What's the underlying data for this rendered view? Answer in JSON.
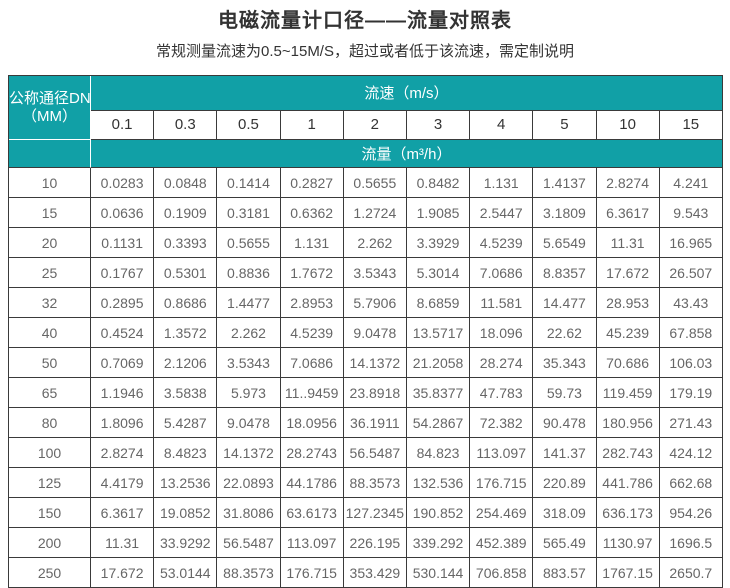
{
  "page": {
    "title": "电磁流量计口径——流量对照表",
    "subtitle": "常规测量流速为0.5~15M/S，超过或者低于该流速，需定制说明"
  },
  "colors": {
    "teal": "#11A0A6",
    "border": "#3a3a3a",
    "data_text": "#666666",
    "header_text": "#333333"
  },
  "table": {
    "corner_line1": "公称通径DN",
    "corner_line2": "（MM）",
    "velocity_header": "流速（m/s）",
    "velocity_values": [
      "0.1",
      "0.3",
      "0.5",
      "1",
      "2",
      "3",
      "4",
      "5",
      "10",
      "15"
    ],
    "flow_header": "流量（m³/h）",
    "rows": [
      {
        "dn": "10",
        "values": [
          "0.0283",
          "0.0848",
          "0.1414",
          "0.2827",
          "0.5655",
          "0.8482",
          "1.131",
          "1.4137",
          "2.8274",
          "4.241"
        ]
      },
      {
        "dn": "15",
        "values": [
          "0.0636",
          "0.1909",
          "0.3181",
          "0.6362",
          "1.2724",
          "1.9085",
          "2.5447",
          "3.1809",
          "6.3617",
          "9.543"
        ]
      },
      {
        "dn": "20",
        "values": [
          "0.1131",
          "0.3393",
          "0.5655",
          "1.131",
          "2.262",
          "3.3929",
          "4.5239",
          "5.6549",
          "11.31",
          "16.965"
        ]
      },
      {
        "dn": "25",
        "values": [
          "0.1767",
          "0.5301",
          "0.8836",
          "1.7672",
          "3.5343",
          "5.3014",
          "7.0686",
          "8.8357",
          "17.672",
          "26.507"
        ]
      },
      {
        "dn": "32",
        "values": [
          "0.2895",
          "0.8686",
          "1.4477",
          "2.8953",
          "5.7906",
          "8.6859",
          "11.581",
          "14.477",
          "28.953",
          "43.43"
        ]
      },
      {
        "dn": "40",
        "values": [
          "0.4524",
          "1.3572",
          "2.262",
          "4.5239",
          "9.0478",
          "13.5717",
          "18.096",
          "22.62",
          "45.239",
          "67.858"
        ]
      },
      {
        "dn": "50",
        "values": [
          "0.7069",
          "2.1206",
          "3.5343",
          "7.0686",
          "14.1372",
          "21.2058",
          "28.274",
          "35.343",
          "70.686",
          "106.03"
        ]
      },
      {
        "dn": "65",
        "values": [
          "1.1946",
          "3.5838",
          "5.973",
          "11..9459",
          "23.8918",
          "35.8377",
          "47.783",
          "59.73",
          "119.459",
          "179.19"
        ]
      },
      {
        "dn": "80",
        "values": [
          "1.8096",
          "5.4287",
          "9.0478",
          "18.0956",
          "36.1911",
          "54.2867",
          "72.382",
          "90.478",
          "180.956",
          "271.43"
        ]
      },
      {
        "dn": "100",
        "values": [
          "2.8274",
          "8.4823",
          "14.1372",
          "28.2743",
          "56.5487",
          "84.823",
          "113.097",
          "141.37",
          "282.743",
          "424.12"
        ]
      },
      {
        "dn": "125",
        "values": [
          "4.4179",
          "13.2536",
          "22.0893",
          "44.1786",
          "88.3573",
          "132.536",
          "176.715",
          "220.89",
          "441.786",
          "662.68"
        ]
      },
      {
        "dn": "150",
        "values": [
          "6.3617",
          "19.0852",
          "31.8086",
          "63.6173",
          "127.2345",
          "190.852",
          "254.469",
          "318.09",
          "636.173",
          "954.26"
        ]
      },
      {
        "dn": "200",
        "values": [
          "11.31",
          "33.9292",
          "56.5487",
          "113.097",
          "226.195",
          "339.292",
          "452.389",
          "565.49",
          "1130.97",
          "1696.5"
        ]
      },
      {
        "dn": "250",
        "values": [
          "17.672",
          "53.0144",
          "88.3573",
          "176.715",
          "353.429",
          "530.144",
          "706.858",
          "883.57",
          "1767.15",
          "2650.7"
        ]
      }
    ]
  }
}
